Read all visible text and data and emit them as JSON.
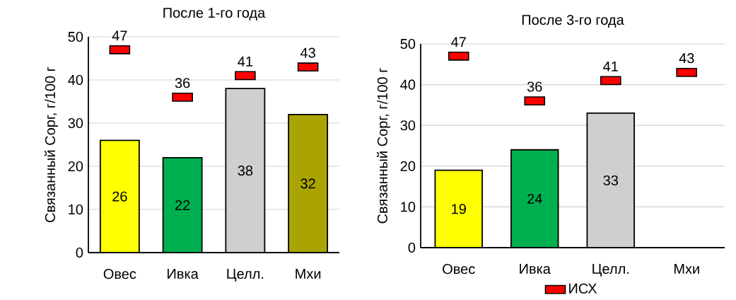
{
  "chart_data": [
    {
      "type": "bar",
      "title": "После 1-го года",
      "ylabel": "Связанный Сорг, г/100 г",
      "categories": [
        "Овес",
        "Ивка",
        "Целл.",
        "Мхи"
      ],
      "ylim": [
        0,
        50
      ],
      "yticks": [
        0,
        10,
        20,
        30,
        40,
        50
      ],
      "grid": "y",
      "data_labels": true,
      "series": [
        {
          "values": [
            26,
            22,
            38,
            32
          ],
          "colors": [
            "#ffff00",
            "#00b050",
            "#d0cece",
            "#aaa400"
          ]
        },
        {
          "type": "scatter",
          "marker": "square",
          "color": "#ff0000",
          "values": [
            47,
            36,
            41,
            43
          ]
        }
      ]
    },
    {
      "type": "bar",
      "title": "После 3-го года",
      "ylabel": "Связанный Сорг, г/100 г",
      "categories": [
        "Овес",
        "Ивка",
        "Целл.",
        "Мхи"
      ],
      "ylim": [
        0,
        50
      ],
      "yticks": [
        0,
        10,
        20,
        30,
        40,
        50
      ],
      "grid": "y",
      "data_labels": true,
      "legend": "bottom",
      "series": [
        {
          "values": [
            19,
            24,
            33,
            null
          ],
          "colors": [
            "#ffff00",
            "#00b050",
            "#d0cece",
            "#aaa400"
          ]
        },
        {
          "name": "ИСХ",
          "type": "scatter",
          "marker": "square",
          "color": "#ff0000",
          "values": [
            47,
            36,
            41,
            43
          ]
        }
      ]
    }
  ]
}
